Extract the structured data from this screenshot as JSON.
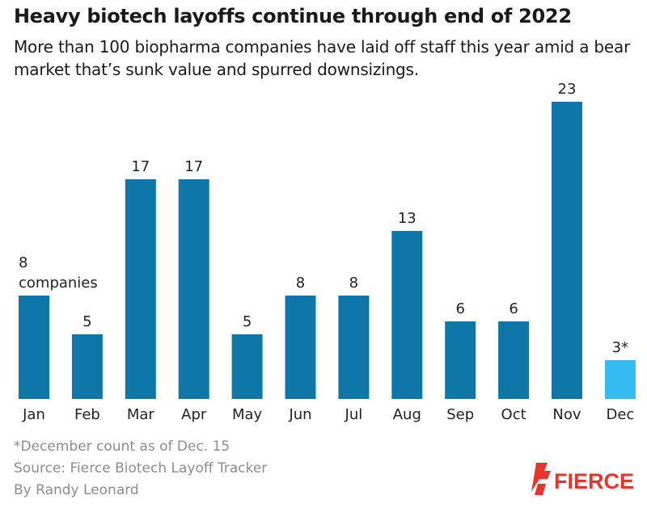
{
  "title": "Heavy biotech layoffs continue through end of 2022",
  "subtitle": "More than 100 biopharma companies have laid off staff this year amid a bear market that’s sunk value and spurred downsizings.",
  "chart_data": {
    "type": "bar",
    "categories": [
      "Jan",
      "Feb",
      "Mar",
      "Apr",
      "May",
      "Jun",
      "Jul",
      "Aug",
      "Sep",
      "Oct",
      "Nov",
      "Dec"
    ],
    "values": [
      8,
      5,
      17,
      17,
      5,
      8,
      8,
      13,
      6,
      6,
      23,
      3
    ],
    "value_labels": [
      "8",
      "5",
      "17",
      "17",
      "5",
      "8",
      "8",
      "13",
      "6",
      "6",
      "23",
      "3*"
    ],
    "first_label_unit": "companies",
    "bar_color": "#0f76a8",
    "highlight_color": "#33bbf2",
    "highlight_category": "Dec",
    "ylim": [
      0,
      23
    ]
  },
  "footnote": "*December count as of Dec. 15",
  "source": "Source: Fierce Biotech Layoff Tracker",
  "byline": "By Randy Leonard",
  "logo": {
    "text": "FIERCE",
    "color": "#e8352c",
    "icon": "fierce-flag-icon"
  }
}
